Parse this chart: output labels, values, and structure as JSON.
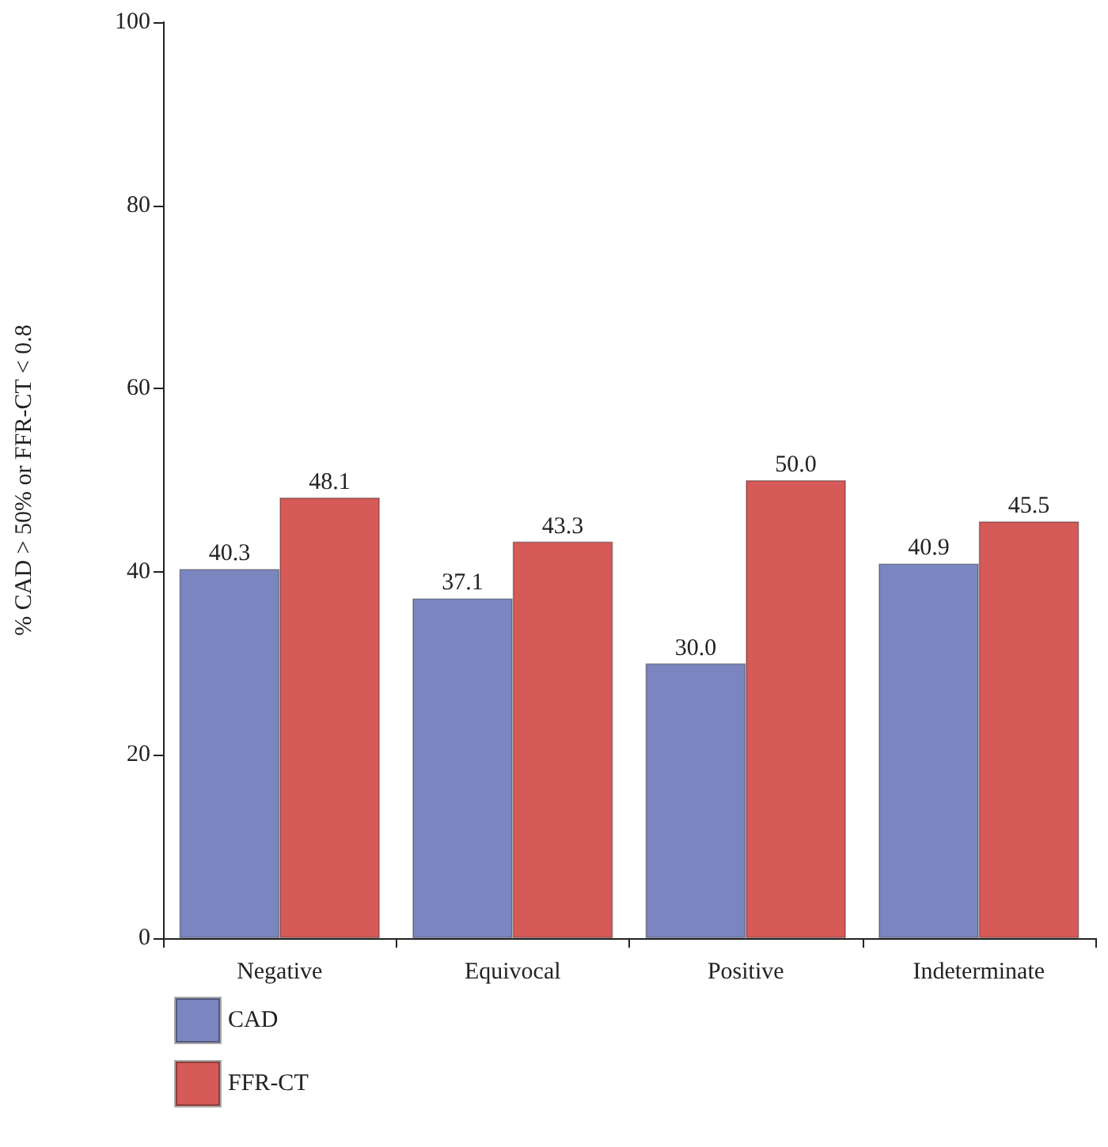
{
  "chart_data": {
    "type": "bar",
    "ylabel": "% CAD > 50% or FFR-CT < 0.8",
    "categories": [
      "Negative",
      "Equivocal",
      "Positive",
      "Indeterminate"
    ],
    "series": [
      {
        "name": "CAD",
        "color": "#7b86c0",
        "values": [
          40.3,
          37.1,
          30.0,
          40.9
        ],
        "value_labels": [
          "40.3",
          "37.1",
          "30.0",
          "40.9"
        ]
      },
      {
        "name": "FFR-CT",
        "color": "#d65a58",
        "values": [
          48.1,
          43.3,
          50.0,
          45.5
        ],
        "value_labels": [
          "48.1",
          "43.3",
          "50.0",
          "45.5"
        ]
      }
    ],
    "ylim": [
      0,
      100
    ],
    "yticks": [
      0,
      20,
      40,
      60,
      80,
      100
    ],
    "grid": false,
    "legend": "bottom left"
  }
}
